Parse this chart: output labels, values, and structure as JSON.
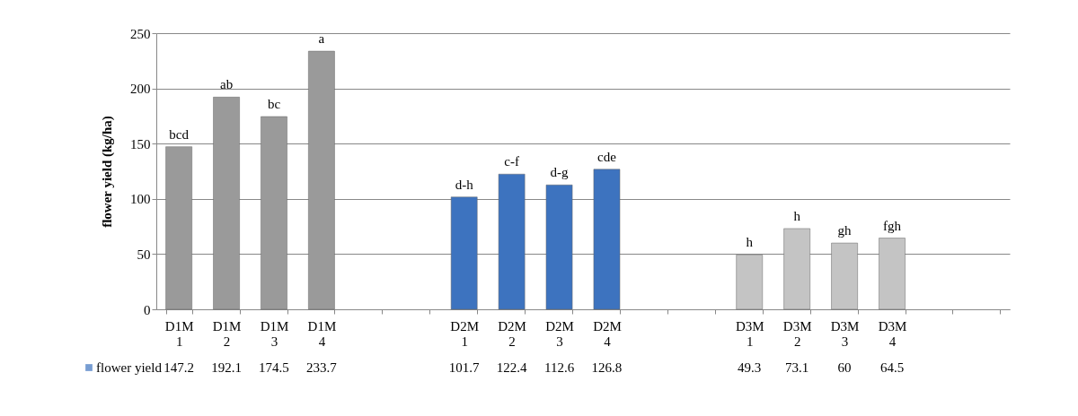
{
  "chart_data": {
    "type": "bar",
    "ylabel": "flower yield (kg/ha)",
    "categories": [
      "D1M 1",
      "D1M 2",
      "D1M 3",
      "D1M 4",
      null,
      null,
      "D2M 1",
      "D2M 2",
      "D2M 3",
      "D2M 4",
      null,
      null,
      "D3M 1",
      "D3M 2",
      "D3M 3",
      "D3M 4",
      null,
      null
    ],
    "series": [
      {
        "name": "flower yield",
        "color": "#3d73bf",
        "colors": [
          "#9a9a9a",
          "#9a9a9a",
          "#9a9a9a",
          "#9a9a9a",
          null,
          null,
          "#3d73bf",
          "#3d73bf",
          "#3d73bf",
          "#3d73bf",
          null,
          null,
          "#c4c4c4",
          "#c4c4c4",
          "#c4c4c4",
          "#c4c4c4",
          null,
          null
        ],
        "values": [
          147.2,
          192.1,
          174.5,
          233.7,
          null,
          null,
          101.7,
          122.4,
          112.6,
          126.8,
          null,
          null,
          49.3,
          73.1,
          60,
          64.5,
          null,
          null
        ]
      }
    ],
    "data_labels": true,
    "annotations": [
      {
        "text": "bcd",
        "x": "D1M 1",
        "y": 147.2
      },
      {
        "text": "ab",
        "x": "D1M 2",
        "y": 192.1
      },
      {
        "text": "bc",
        "x": "D1M 3",
        "y": 174.5
      },
      {
        "text": "a",
        "x": "D1M 4",
        "y": 233.7
      },
      {
        "text": "d-h",
        "x": "D2M 1",
        "y": 101.7
      },
      {
        "text": "c-f",
        "x": "D2M 2",
        "y": 122.4
      },
      {
        "text": "d-g",
        "x": "D2M 3",
        "y": 112.6
      },
      {
        "text": "cde",
        "x": "D2M 4",
        "y": 126.8
      },
      {
        "text": "h",
        "x": "D3M 1",
        "y": 49.3
      },
      {
        "text": "h",
        "x": "D3M 2",
        "y": 73.1
      },
      {
        "text": "gh",
        "x": "D3M 3",
        "y": 60
      },
      {
        "text": "fgh",
        "x": "D3M 4",
        "y": 64.5
      }
    ],
    "ylim": [
      0,
      250
    ],
    "yticks": [
      0,
      50,
      100,
      150,
      200,
      250
    ],
    "grid": "y",
    "legend": "bottom left"
  }
}
